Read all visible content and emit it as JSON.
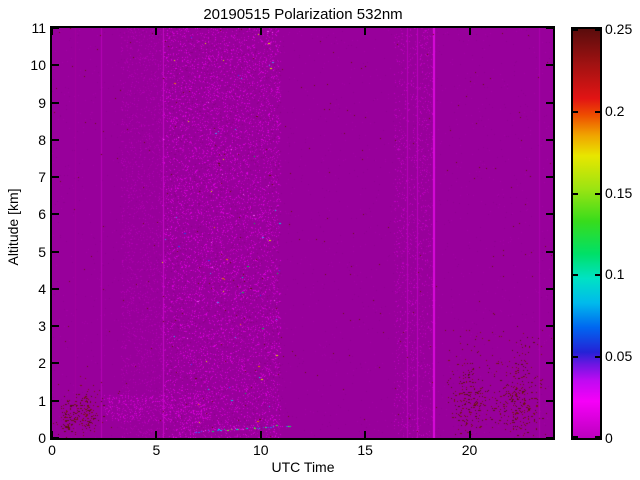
{
  "chart_data": {
    "type": "heatmap",
    "title": "20190515 Polarization 532nm",
    "xlabel": "UTC Time",
    "ylabel": "Altitude [km]",
    "xlim": [
      0,
      24
    ],
    "ylim": [
      0,
      11
    ],
    "grid": false,
    "legend": "none",
    "xticks": {
      "values": [
        0,
        5,
        10,
        15,
        20
      ],
      "labels": [
        "0",
        "5",
        "10",
        "15",
        "20"
      ]
    },
    "yticks": {
      "values": [
        0,
        1,
        2,
        3,
        4,
        5,
        6,
        7,
        8,
        9,
        10,
        11
      ],
      "labels": [
        "0",
        "1",
        "2",
        "3",
        "4",
        "5",
        "6",
        "7",
        "8",
        "9",
        "10",
        "11"
      ]
    },
    "colorbar": {
      "position": "right",
      "vmin": 0,
      "vmax": 0.25,
      "tick_values": [
        0,
        0.05,
        0.1,
        0.15,
        0.2,
        0.25
      ],
      "tick_labels": [
        "0",
        "0.05",
        "0.1",
        "0.15",
        "0.2",
        "0.25"
      ],
      "colormap_stops": [
        [
          0.0,
          "#BC00BE"
        ],
        [
          0.09,
          "#F600F8"
        ],
        [
          0.14,
          "#C00AF2"
        ],
        [
          0.18,
          "#6C16E2"
        ],
        [
          0.21,
          "#2422D6"
        ],
        [
          0.27,
          "#0066F0"
        ],
        [
          0.33,
          "#00BAEC"
        ],
        [
          0.39,
          "#00E2C4"
        ],
        [
          0.45,
          "#00E068"
        ],
        [
          0.53,
          "#38DC1C"
        ],
        [
          0.61,
          "#9CE412"
        ],
        [
          0.69,
          "#E8E600"
        ],
        [
          0.74,
          "#F0A400"
        ],
        [
          0.79,
          "#EE4C00"
        ],
        [
          0.83,
          "#E21414"
        ],
        [
          0.91,
          "#A41212"
        ],
        [
          1.0,
          "#5A0C0C"
        ]
      ]
    },
    "field_description": "Depolarization ratio field, value ~0 (magenta) nearly everywhere with noise speckle bands and low-altitude dark-red speckle clusters",
    "noise": {
      "background": "#98009B",
      "seed": 20190515,
      "speckle_bands": [
        {
          "x0": 0.0,
          "x1": 24.0,
          "y0": 0,
          "y1": 11,
          "density": 0.012,
          "colors": [
            "#A400A6",
            "#8E0092"
          ]
        },
        {
          "x0": 3.3,
          "x1": 5.3,
          "y0": 0,
          "y1": 11,
          "density": 0.1,
          "colors": [
            "#A800AA",
            "#B400B6"
          ]
        },
        {
          "x0": 5.3,
          "x1": 10.95,
          "y0": 0,
          "y1": 11,
          "density": 0.17,
          "colors": [
            "#B200B4",
            "#C000C2",
            "#CE00D0",
            "#E000E2",
            "#880085"
          ]
        },
        {
          "x0": 16.4,
          "x1": 18.3,
          "y0": 0,
          "y1": 11,
          "density": 0.09,
          "colors": [
            "#AE00B0",
            "#C200C4"
          ]
        },
        {
          "x0": 2.5,
          "x1": 7.6,
          "y0": 0.45,
          "y1": 1.15,
          "density": 0.16,
          "colors": [
            "#B600B8",
            "#C800CA",
            "#DC00DE"
          ]
        }
      ],
      "vlines": [
        {
          "x": 1.08,
          "w": 1,
          "color": "#A2009E"
        },
        {
          "x": 2.35,
          "w": 1,
          "color": "#B404B6"
        },
        {
          "x": 5.3,
          "w": 1,
          "color": "#C408C6"
        },
        {
          "x": 17.0,
          "w": 1,
          "color": "#B800BA"
        },
        {
          "x": 17.5,
          "w": 1,
          "color": "#BC00BE"
        },
        {
          "x": 18.25,
          "w": 2,
          "color": "#DA0ADC"
        },
        {
          "x": 23.35,
          "w": 1,
          "color": "#AB00AD"
        }
      ],
      "colored_dots": {
        "x0": 5.3,
        "x1": 10.95,
        "y0": 0,
        "y1": 11,
        "count": 95,
        "colors": [
          "#2846EA",
          "#4C94F2",
          "#00D4E2",
          "#00C848",
          "#E8E800",
          "#EA7A00",
          "#5E1010",
          "#FF50FF"
        ]
      },
      "dark_dots": {
        "x0": 0,
        "x1": 24,
        "y0": 0,
        "y1": 11,
        "count": 240,
        "color": "#6B1111"
      },
      "red_colors": [
        "#581010",
        "#6E1212",
        "#7E1414"
      ],
      "red_clusters": [
        {
          "cx": 0.78,
          "cy": 0.62,
          "sx": 0.26,
          "sy": 0.28,
          "count": 90
        },
        {
          "cx": 1.62,
          "cy": 0.72,
          "sx": 0.36,
          "sy": 0.32,
          "count": 150
        },
        {
          "cx": 20.0,
          "cy": 1.05,
          "sx": 0.5,
          "sy": 0.5,
          "count": 170
        },
        {
          "cx": 22.35,
          "cy": 1.0,
          "sx": 0.55,
          "sy": 0.5,
          "count": 230
        }
      ],
      "red_halo": {
        "x0": 19.0,
        "x1": 23.5,
        "y0": 0.2,
        "y1": 2.9,
        "count": 150
      },
      "layer_line": {
        "x0": 6.9,
        "x1": 11.4,
        "y0": 0.17,
        "y1": 0.32,
        "count": 42,
        "colors": [
          "#FF44FF",
          "#00DE66",
          "#00D0E4",
          "#3C62F4",
          "#DE00E0",
          "#70E81C"
        ]
      }
    }
  }
}
